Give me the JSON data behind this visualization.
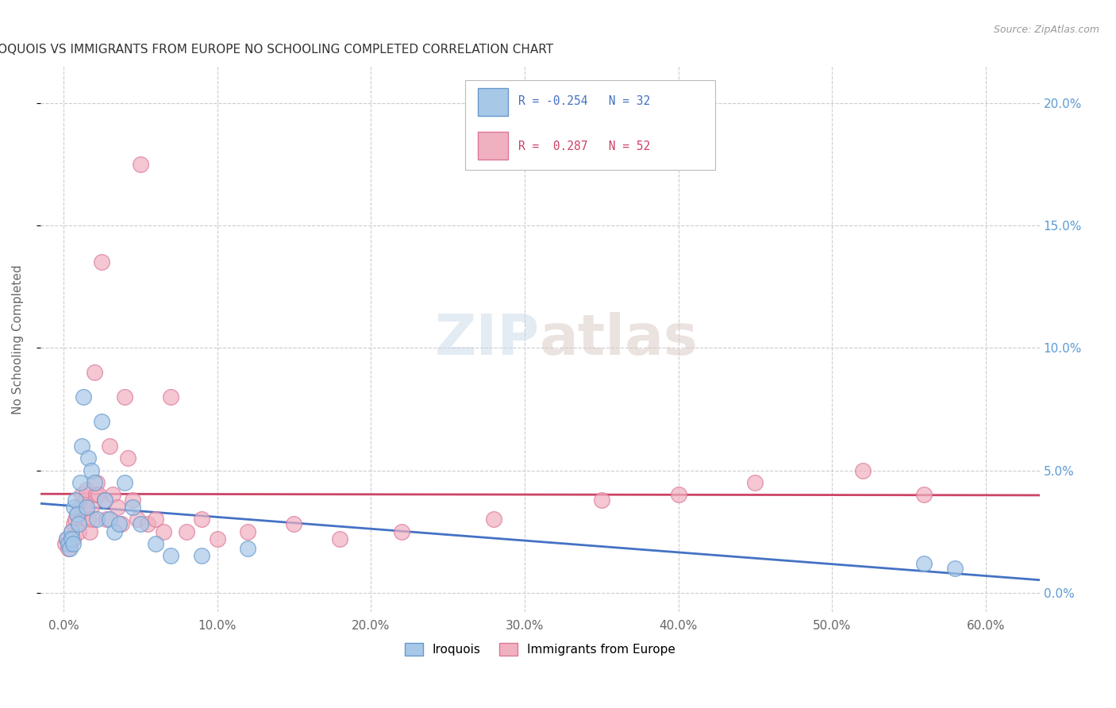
{
  "title": "IROQUOIS VS IMMIGRANTS FROM EUROPE NO SCHOOLING COMPLETED CORRELATION CHART",
  "source": "Source: ZipAtlas.com",
  "xlabel_ticks": [
    "0.0%",
    "10.0%",
    "20.0%",
    "30.0%",
    "40.0%",
    "50.0%",
    "60.0%"
  ],
  "xlabel_vals": [
    0.0,
    0.1,
    0.2,
    0.3,
    0.4,
    0.5,
    0.6
  ],
  "ylabel": "No Schooling Completed",
  "ylabel_ticks": [
    "0.0%",
    "5.0%",
    "10.0%",
    "15.0%",
    "20.0%"
  ],
  "ylabel_vals": [
    0.0,
    0.05,
    0.1,
    0.15,
    0.2
  ],
  "ylim": [
    -0.008,
    0.215
  ],
  "xlim": [
    -0.015,
    0.635
  ],
  "legend_iroquois": "Iroquois",
  "legend_immigrants": "Immigrants from Europe",
  "R_iroquois": -0.254,
  "N_iroquois": 32,
  "R_immigrants": 0.287,
  "N_immigrants": 52,
  "color_iroquois_fill": "#A8C8E8",
  "color_iroquois_edge": "#6699CC",
  "color_immigrants_fill": "#F0B0C0",
  "color_immigrants_edge": "#DD7799",
  "color_blue_line": "#4472C4",
  "color_pink_line": "#CC4466",
  "color_axis_right": "#5B9BD5",
  "color_title": "#333333",
  "color_source": "#999999",
  "color_grid": "#CCCCCC",
  "bg_color": "#FFFFFF",
  "iroquois_x": [
    0.002,
    0.003,
    0.004,
    0.005,
    0.005,
    0.006,
    0.007,
    0.008,
    0.009,
    0.01,
    0.011,
    0.012,
    0.013,
    0.015,
    0.016,
    0.018,
    0.02,
    0.022,
    0.025,
    0.027,
    0.03,
    0.033,
    0.036,
    0.04,
    0.045,
    0.05,
    0.06,
    0.07,
    0.09,
    0.12,
    0.56,
    0.58
  ],
  "iroquois_y": [
    0.022,
    0.02,
    0.018,
    0.025,
    0.022,
    0.02,
    0.035,
    0.038,
    0.032,
    0.028,
    0.045,
    0.06,
    0.08,
    0.035,
    0.055,
    0.05,
    0.045,
    0.03,
    0.07,
    0.038,
    0.03,
    0.025,
    0.028,
    0.045,
    0.035,
    0.028,
    0.02,
    0.015,
    0.015,
    0.018,
    0.012,
    0.01
  ],
  "immigrants_x": [
    0.001,
    0.002,
    0.003,
    0.004,
    0.005,
    0.006,
    0.007,
    0.008,
    0.009,
    0.01,
    0.011,
    0.012,
    0.013,
    0.014,
    0.015,
    0.016,
    0.017,
    0.018,
    0.019,
    0.02,
    0.021,
    0.022,
    0.023,
    0.025,
    0.027,
    0.028,
    0.03,
    0.032,
    0.035,
    0.038,
    0.04,
    0.042,
    0.045,
    0.048,
    0.05,
    0.055,
    0.06,
    0.065,
    0.07,
    0.08,
    0.09,
    0.1,
    0.12,
    0.15,
    0.18,
    0.22,
    0.28,
    0.35,
    0.4,
    0.45,
    0.52,
    0.56
  ],
  "immigrants_y": [
    0.02,
    0.022,
    0.018,
    0.02,
    0.025,
    0.022,
    0.028,
    0.03,
    0.032,
    0.025,
    0.035,
    0.04,
    0.035,
    0.038,
    0.042,
    0.03,
    0.025,
    0.035,
    0.03,
    0.09,
    0.04,
    0.045,
    0.04,
    0.135,
    0.038,
    0.03,
    0.06,
    0.04,
    0.035,
    0.028,
    0.08,
    0.055,
    0.038,
    0.03,
    0.175,
    0.028,
    0.03,
    0.025,
    0.08,
    0.025,
    0.03,
    0.022,
    0.025,
    0.028,
    0.022,
    0.025,
    0.03,
    0.038,
    0.04,
    0.045,
    0.05,
    0.04
  ]
}
